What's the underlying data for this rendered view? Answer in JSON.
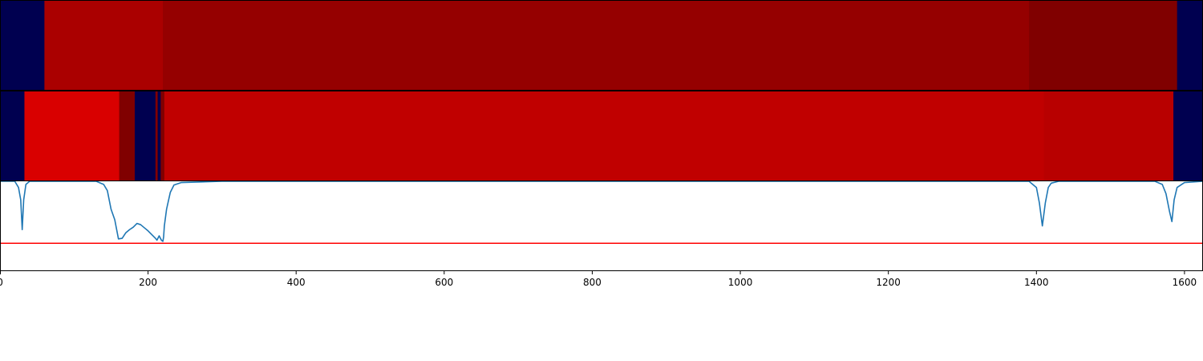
{
  "chart_data": [
    {
      "type": "heatmap",
      "name": "segmentation-track-1",
      "segments": [
        {
          "start": 0,
          "end": 60,
          "color": "#000050"
        },
        {
          "start": 60,
          "end": 220,
          "color": "#aa0000"
        },
        {
          "start": 220,
          "end": 1390,
          "color": "#950000"
        },
        {
          "start": 1390,
          "end": 1590,
          "color": "#800000"
        },
        {
          "start": 1590,
          "end": 1625,
          "color": "#000050"
        }
      ]
    },
    {
      "type": "heatmap",
      "name": "segmentation-track-2",
      "segments": [
        {
          "start": 0,
          "end": 33,
          "color": "#000050"
        },
        {
          "start": 33,
          "end": 161,
          "color": "#d90000"
        },
        {
          "start": 161,
          "end": 182,
          "color": "#800000"
        },
        {
          "start": 182,
          "end": 210,
          "color": "#000050"
        },
        {
          "start": 210,
          "end": 213,
          "color": "#800000"
        },
        {
          "start": 213,
          "end": 217,
          "color": "#000050"
        },
        {
          "start": 217,
          "end": 222,
          "color": "#800000"
        },
        {
          "start": 222,
          "end": 1410,
          "color": "#c00000"
        },
        {
          "start": 1410,
          "end": 1585,
          "color": "#b80000"
        },
        {
          "start": 1585,
          "end": 1625,
          "color": "#000050"
        }
      ]
    },
    {
      "type": "line",
      "name": "signal-plot",
      "series": [
        {
          "name": "signal",
          "color": "#1f77b4",
          "x": [
            0,
            20,
            25,
            28,
            30,
            32,
            35,
            40,
            130,
            140,
            145,
            150,
            155,
            160,
            165,
            170,
            175,
            180,
            185,
            190,
            195,
            200,
            205,
            210,
            212,
            215,
            218,
            220,
            221,
            222,
            225,
            230,
            235,
            245,
            300,
            1390,
            1400,
            1404,
            1408,
            1412,
            1416,
            1420,
            1430,
            1560,
            1570,
            1575,
            1580,
            1583,
            1586,
            1590,
            1600,
            1625
          ],
          "y": [
            0.0,
            0.0,
            0.1,
            0.3,
            0.78,
            0.3,
            0.05,
            0.0,
            0.0,
            0.05,
            0.15,
            0.45,
            0.62,
            0.93,
            0.92,
            0.83,
            0.78,
            0.74,
            0.68,
            0.7,
            0.75,
            0.8,
            0.86,
            0.92,
            0.95,
            0.88,
            0.95,
            0.97,
            0.9,
            0.72,
            0.45,
            0.18,
            0.06,
            0.02,
            0.0,
            0.0,
            0.1,
            0.35,
            0.72,
            0.35,
            0.1,
            0.03,
            0.0,
            0.0,
            0.05,
            0.2,
            0.5,
            0.65,
            0.3,
            0.1,
            0.02,
            0.0
          ]
        }
      ],
      "threshold": {
        "value": 1.0,
        "color": "#ff0000"
      },
      "xlim": [
        0,
        1625
      ],
      "ylim": [
        0,
        1.45
      ],
      "y_inverted": true,
      "xticks": [
        0,
        200,
        400,
        600,
        800,
        1000,
        1200,
        1400,
        1600
      ],
      "xtick_labels": [
        "0",
        "200",
        "400",
        "600",
        "800",
        "1000",
        "1200",
        "1400",
        "1600"
      ],
      "title": "",
      "xlabel": "",
      "ylabel": ""
    }
  ]
}
